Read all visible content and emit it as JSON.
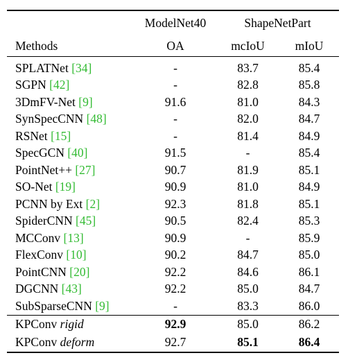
{
  "header": {
    "group_left": "ModelNet40",
    "group_right": "ShapeNetPart",
    "col_methods": "Methods",
    "col_oa": "OA",
    "col_mciou": "mcIoU",
    "col_miou": "mIoU"
  },
  "rows": [
    {
      "name": "SPLATNet ",
      "open": "[",
      "ref": "34",
      "close": "]",
      "oa": "-",
      "mciou": "83.7",
      "miou": "85.4"
    },
    {
      "name": "SGPN ",
      "open": "[",
      "ref": "42",
      "close": "]",
      "oa": "-",
      "mciou": "82.8",
      "miou": "85.8"
    },
    {
      "name": "3DmFV-Net ",
      "open": "[",
      "ref": "9",
      "close": "]",
      "oa": "91.6",
      "mciou": "81.0",
      "miou": "84.3"
    },
    {
      "name": "SynSpecCNN ",
      "open": "[",
      "ref": "48",
      "close": "]",
      "oa": "-",
      "mciou": "82.0",
      "miou": "84.7"
    },
    {
      "name": "RSNet ",
      "open": "[",
      "ref": "15",
      "close": "]",
      "oa": "-",
      "mciou": "81.4",
      "miou": "84.9"
    },
    {
      "name": "SpecGCN ",
      "open": "[",
      "ref": "40",
      "close": "]",
      "oa": "91.5",
      "mciou": "-",
      "miou": "85.4"
    },
    {
      "name": "PointNet++ ",
      "open": "[",
      "ref": "27",
      "close": "]",
      "oa": "90.7",
      "mciou": "81.9",
      "miou": "85.1"
    },
    {
      "name": "SO-Net ",
      "open": "[",
      "ref": "19",
      "close": "]",
      "oa": "90.9",
      "mciou": "81.0",
      "miou": "84.9"
    },
    {
      "name": "PCNN by Ext ",
      "open": "[",
      "ref": "2",
      "close": "]",
      "oa": "92.3",
      "mciou": "81.8",
      "miou": "85.1"
    },
    {
      "name": "SpiderCNN ",
      "open": "[",
      "ref": "45",
      "close": "]",
      "oa": "90.5",
      "mciou": "82.4",
      "miou": "85.3"
    },
    {
      "name": "MCConv ",
      "open": "[",
      "ref": "13",
      "close": "]",
      "oa": "90.9",
      "mciou": "-",
      "miou": "85.9"
    },
    {
      "name": "FlexConv ",
      "open": "[",
      "ref": "10",
      "close": "]",
      "oa": "90.2",
      "mciou": "84.7",
      "miou": "85.0"
    },
    {
      "name": "PointCNN ",
      "open": "[",
      "ref": "20",
      "close": "]",
      "oa": "92.2",
      "mciou": "84.6",
      "miou": "86.1"
    },
    {
      "name": "DGCNN ",
      "open": "[",
      "ref": "43",
      "close": "]",
      "oa": "92.2",
      "mciou": "85.0",
      "miou": "84.7"
    },
    {
      "name": "SubSparseCNN ",
      "open": "[",
      "ref": "9",
      "close": "]",
      "oa": "-",
      "mciou": "83.3",
      "miou": "86.0"
    }
  ],
  "kpconv": [
    {
      "prefix": "KPConv ",
      "variant": "rigid",
      "oa": "92.9",
      "mciou": "85.0",
      "miou": "86.2"
    },
    {
      "prefix": "KPConv ",
      "variant": "deform",
      "oa": "92.7",
      "mciou": "85.1",
      "miou": "86.4"
    }
  ],
  "colors": {
    "citation": "#33bb33",
    "text": "#000000"
  }
}
